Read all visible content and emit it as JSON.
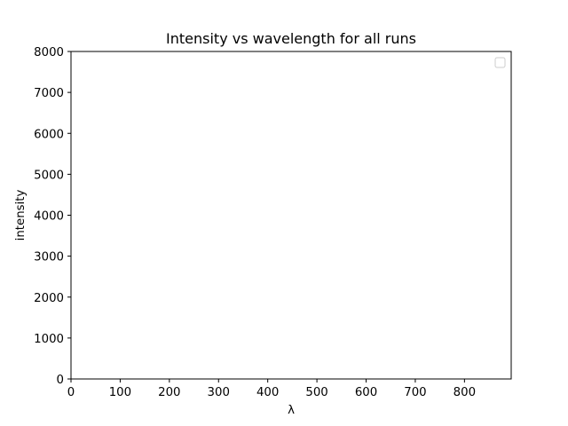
{
  "chart_data": {
    "type": "line",
    "title": "Intensity vs wavelength for all runs",
    "xlabel": "λ",
    "ylabel": "intensity",
    "xlim": [
      0,
      895
    ],
    "ylim": [
      0,
      8000
    ],
    "x_ticks": [
      0,
      100,
      200,
      300,
      400,
      500,
      600,
      700,
      800
    ],
    "y_ticks": [
      0,
      1000,
      2000,
      3000,
      4000,
      5000,
      6000,
      7000,
      8000
    ],
    "series": [],
    "grid": false,
    "legend": {
      "placement": "top-right",
      "entries": []
    }
  },
  "colors": {
    "background": "#ffffff",
    "axes": "#000000",
    "legend_border": "#cccccc"
  }
}
